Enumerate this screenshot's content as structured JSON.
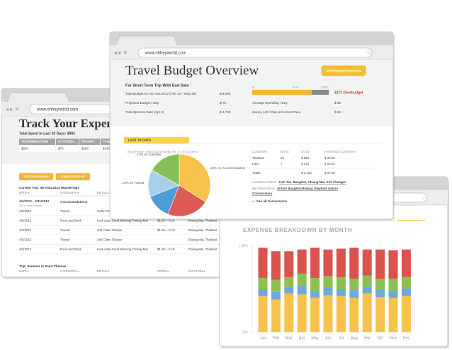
{
  "expenses_window": {
    "url": "www.ohheyworld.com",
    "title": "Track Your Expenses",
    "total": "Total Spent in Last 30 Days: $983",
    "summary_header": [
      "ACCOMMODATION",
      "ACTIVITIES",
      "TRANSIT",
      "FOOD"
    ],
    "summary_values": [
      "$583",
      "$70",
      "$200",
      "$130"
    ],
    "buttons": [
      "Add an Expense",
      "Export to Excel"
    ],
    "trip": "Current Trip: SE Asia 2012 Wanderings",
    "table_header": [
      "DATE ▾",
      "CATEGORY ▾",
      "DETAILS"
    ],
    "range": "4/1/2012 - 4/31/2012",
    "range_links": "Edit | Clone | Delete",
    "range_category": "Accommodations",
    "rows": [
      [
        "4/1/2012",
        "Transit",
        "Cebu Pacific",
        null,
        null
      ],
      [
        "4/2/2012",
        "Food and Drink",
        "Iced Latte Good Morning Chiang Mai",
        "$1.50 = 0.10",
        "Chiang Mai, Thailand"
      ],
      [
        "4/2/2012",
        "Transit",
        "2nd Class Sleeper",
        "$1.50 = 0.10",
        "Chiang Mai, Thailand"
      ],
      [
        "4/2/2012",
        "Transit",
        "2nd Class Sleeper",
        null,
        "Chiang Mai, Thailand"
      ],
      [
        "4/2/2012",
        "Food and Drink",
        "Iced Latte Good Morning Chiang Mai",
        "$1.50 = 0.10",
        "Chiang Mai, Thailand"
      ]
    ],
    "trip2": "Trip: Summer in Saint Thomas",
    "table2_header": [
      "DATE ▾",
      "CATEGORY ▾",
      "DETAILS",
      "PRICE ▾",
      "LOCATION ▾"
    ]
  },
  "month_window": {
    "url": "www.ohheyworld.com",
    "title": "EXPENSE BREAKDOWN BY MONTH",
    "categories": [
      "Jan",
      "Feb",
      "Mar",
      "Apr",
      "May",
      "Jun",
      "Jul",
      "Aug",
      "Sep",
      "Oct",
      "Nov",
      "Dec"
    ],
    "series": [
      {
        "color": "#f7c24c",
        "values": [
          42,
          38,
          45,
          44,
          40,
          43,
          42,
          40,
          45,
          41,
          40,
          42
        ]
      },
      {
        "color": "#6fa8dc",
        "values": [
          8,
          9,
          7,
          10,
          8,
          9,
          8,
          9,
          7,
          9,
          8,
          9
        ]
      },
      {
        "color": "#8cc152",
        "values": [
          13,
          14,
          12,
          14,
          15,
          13,
          14,
          13,
          14,
          12,
          14,
          13
        ]
      },
      {
        "color": "#d9534f",
        "values": [
          35,
          33,
          30,
          28,
          35,
          31,
          33,
          36,
          30,
          34,
          33,
          32
        ]
      }
    ],
    "ylim": [
      0,
      100
    ],
    "yticks": [
      {
        "value": 0,
        "label": "0%"
      },
      {
        "value": 100,
        "label": "100%"
      }
    ]
  },
  "budget_window": {
    "url": "www.ohheyworld.com",
    "title": "Travel Budget Overview",
    "button": "Add/Manage Expenses",
    "subtitle": "For Short Term Trip With End Date",
    "rows": [
      [
        "Total Budget for SE Asia 2012 (Feb 12 – May 29)",
        "$ 8,000"
      ],
      [
        "Projected Budget / Day",
        "$ 75"
      ],
      [
        "Total Spent to Date (Apr 8)",
        "$ 4,760"
      ]
    ],
    "progress_labels": [
      "$0",
      "$4760",
      "$8000"
    ],
    "overbudget": "$171 Overbudget",
    "pace_rows": [
      [
        "Average Spending / Day",
        "$ 58"
      ],
      [
        "Money Left / Day at Current Pace",
        "$ 63"
      ]
    ],
    "section": "LAST 30 DAYS",
    "pie": {
      "title": "EXPENSE BREAKDOWN BY CATEGORY",
      "slices": [
        {
          "label": "34% on Accommodation",
          "value": 34,
          "color": "#f7c24c"
        },
        {
          "value": 22,
          "color": "#e05a55"
        },
        {
          "value": 13,
          "color": "#4f9bd6"
        },
        {
          "label": "14% on Transit",
          "value": 14,
          "color": "#a9cfe9"
        },
        {
          "label": "17% on Activities",
          "value": 17,
          "color": "#84c057"
        }
      ]
    },
    "country_table": {
      "header": [
        "COUNTRY",
        "DAYS",
        "COST",
        "AVERAGE COST/DAY"
      ],
      "rows": [
        [
          "Thailand",
          "23",
          "$ 894",
          "$ 38.86"
        ],
        [
          "Laos",
          "7",
          "$ 234",
          "$ 33.42"
        ],
        [
          "Totals",
          null,
          "$ 1,128",
          "$ 37.60"
        ]
      ]
    },
    "locations_label": "Locations Visited:",
    "locations": "Koh Tao, Bangkok, Chiang Mai, Koh Phangan",
    "big_ticket_label": "Big Ticket Items:",
    "big_ticket": [
      "Airfare Bangkok-Beijing, Elephant Nature",
      "Conservatory"
    ],
    "see_all": "See all transactions"
  }
}
